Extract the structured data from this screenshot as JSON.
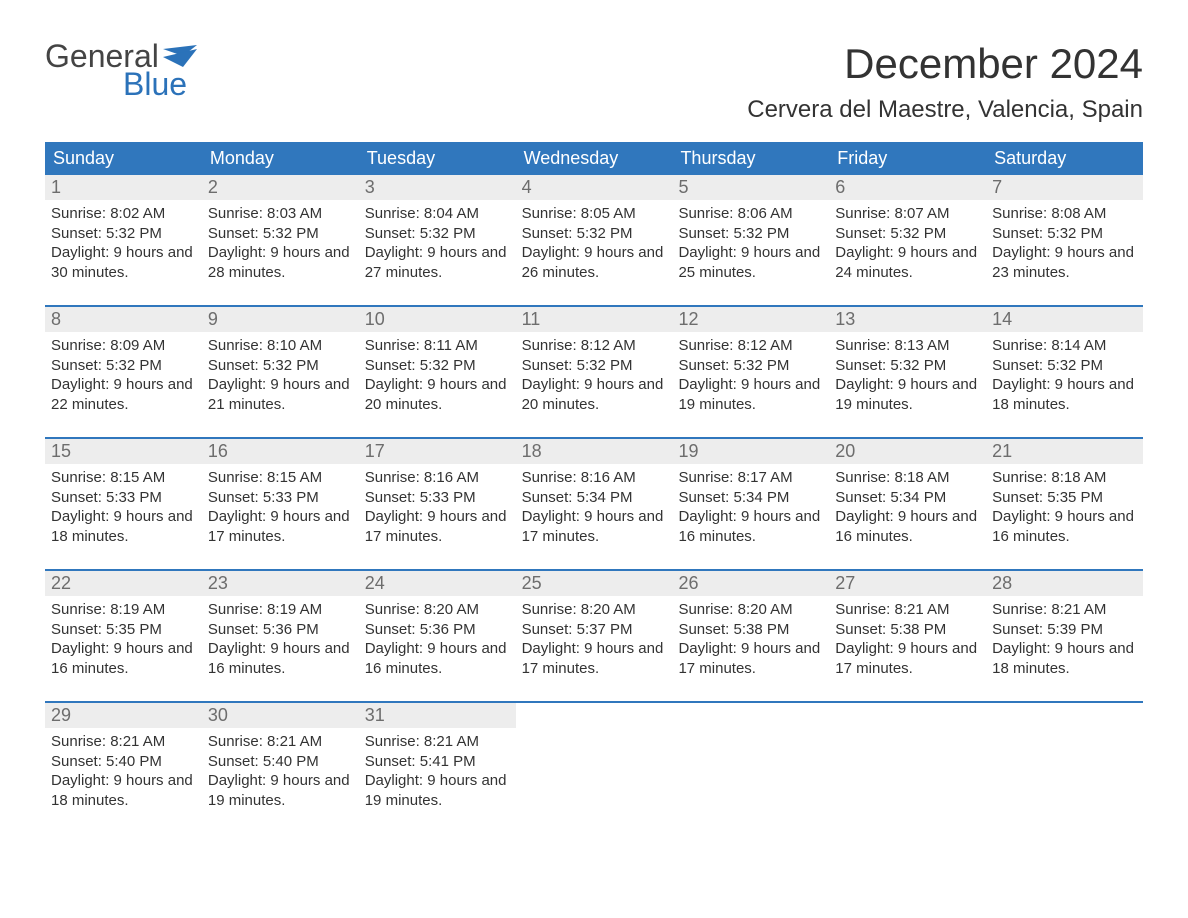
{
  "logo": {
    "top": "General",
    "bottom": "Blue",
    "text_color": "#444444",
    "accent_color": "#2b72b9"
  },
  "title": "December 2024",
  "location": "Cervera del Maestre, Valencia, Spain",
  "colors": {
    "header_bg": "#3077bd",
    "header_text": "#ffffff",
    "daynum_bg": "#ededed",
    "daynum_text": "#6d6d6d",
    "body_text": "#333333",
    "week_border": "#3077bd",
    "page_bg": "#ffffff"
  },
  "typography": {
    "title_fontsize": 42,
    "location_fontsize": 24,
    "dayhead_fontsize": 18,
    "daynum_fontsize": 18,
    "body_fontsize": 15
  },
  "layout": {
    "columns": 7,
    "rows": 5
  },
  "day_headers": [
    "Sunday",
    "Monday",
    "Tuesday",
    "Wednesday",
    "Thursday",
    "Friday",
    "Saturday"
  ],
  "weeks": [
    [
      {
        "num": "1",
        "sunrise": "8:02 AM",
        "sunset": "5:32 PM",
        "dl": "9 hours and 30 minutes."
      },
      {
        "num": "2",
        "sunrise": "8:03 AM",
        "sunset": "5:32 PM",
        "dl": "9 hours and 28 minutes."
      },
      {
        "num": "3",
        "sunrise": "8:04 AM",
        "sunset": "5:32 PM",
        "dl": "9 hours and 27 minutes."
      },
      {
        "num": "4",
        "sunrise": "8:05 AM",
        "sunset": "5:32 PM",
        "dl": "9 hours and 26 minutes."
      },
      {
        "num": "5",
        "sunrise": "8:06 AM",
        "sunset": "5:32 PM",
        "dl": "9 hours and 25 minutes."
      },
      {
        "num": "6",
        "sunrise": "8:07 AM",
        "sunset": "5:32 PM",
        "dl": "9 hours and 24 minutes."
      },
      {
        "num": "7",
        "sunrise": "8:08 AM",
        "sunset": "5:32 PM",
        "dl": "9 hours and 23 minutes."
      }
    ],
    [
      {
        "num": "8",
        "sunrise": "8:09 AM",
        "sunset": "5:32 PM",
        "dl": "9 hours and 22 minutes."
      },
      {
        "num": "9",
        "sunrise": "8:10 AM",
        "sunset": "5:32 PM",
        "dl": "9 hours and 21 minutes."
      },
      {
        "num": "10",
        "sunrise": "8:11 AM",
        "sunset": "5:32 PM",
        "dl": "9 hours and 20 minutes."
      },
      {
        "num": "11",
        "sunrise": "8:12 AM",
        "sunset": "5:32 PM",
        "dl": "9 hours and 20 minutes."
      },
      {
        "num": "12",
        "sunrise": "8:12 AM",
        "sunset": "5:32 PM",
        "dl": "9 hours and 19 minutes."
      },
      {
        "num": "13",
        "sunrise": "8:13 AM",
        "sunset": "5:32 PM",
        "dl": "9 hours and 19 minutes."
      },
      {
        "num": "14",
        "sunrise": "8:14 AM",
        "sunset": "5:32 PM",
        "dl": "9 hours and 18 minutes."
      }
    ],
    [
      {
        "num": "15",
        "sunrise": "8:15 AM",
        "sunset": "5:33 PM",
        "dl": "9 hours and 18 minutes."
      },
      {
        "num": "16",
        "sunrise": "8:15 AM",
        "sunset": "5:33 PM",
        "dl": "9 hours and 17 minutes."
      },
      {
        "num": "17",
        "sunrise": "8:16 AM",
        "sunset": "5:33 PM",
        "dl": "9 hours and 17 minutes."
      },
      {
        "num": "18",
        "sunrise": "8:16 AM",
        "sunset": "5:34 PM",
        "dl": "9 hours and 17 minutes."
      },
      {
        "num": "19",
        "sunrise": "8:17 AM",
        "sunset": "5:34 PM",
        "dl": "9 hours and 16 minutes."
      },
      {
        "num": "20",
        "sunrise": "8:18 AM",
        "sunset": "5:34 PM",
        "dl": "9 hours and 16 minutes."
      },
      {
        "num": "21",
        "sunrise": "8:18 AM",
        "sunset": "5:35 PM",
        "dl": "9 hours and 16 minutes."
      }
    ],
    [
      {
        "num": "22",
        "sunrise": "8:19 AM",
        "sunset": "5:35 PM",
        "dl": "9 hours and 16 minutes."
      },
      {
        "num": "23",
        "sunrise": "8:19 AM",
        "sunset": "5:36 PM",
        "dl": "9 hours and 16 minutes."
      },
      {
        "num": "24",
        "sunrise": "8:20 AM",
        "sunset": "5:36 PM",
        "dl": "9 hours and 16 minutes."
      },
      {
        "num": "25",
        "sunrise": "8:20 AM",
        "sunset": "5:37 PM",
        "dl": "9 hours and 17 minutes."
      },
      {
        "num": "26",
        "sunrise": "8:20 AM",
        "sunset": "5:38 PM",
        "dl": "9 hours and 17 minutes."
      },
      {
        "num": "27",
        "sunrise": "8:21 AM",
        "sunset": "5:38 PM",
        "dl": "9 hours and 17 minutes."
      },
      {
        "num": "28",
        "sunrise": "8:21 AM",
        "sunset": "5:39 PM",
        "dl": "9 hours and 18 minutes."
      }
    ],
    [
      {
        "num": "29",
        "sunrise": "8:21 AM",
        "sunset": "5:40 PM",
        "dl": "9 hours and 18 minutes."
      },
      {
        "num": "30",
        "sunrise": "8:21 AM",
        "sunset": "5:40 PM",
        "dl": "9 hours and 19 minutes."
      },
      {
        "num": "31",
        "sunrise": "8:21 AM",
        "sunset": "5:41 PM",
        "dl": "9 hours and 19 minutes."
      },
      {
        "empty": true
      },
      {
        "empty": true
      },
      {
        "empty": true
      },
      {
        "empty": true
      }
    ]
  ],
  "labels": {
    "sunrise": "Sunrise: ",
    "sunset": "Sunset: ",
    "daylight": "Daylight: "
  }
}
